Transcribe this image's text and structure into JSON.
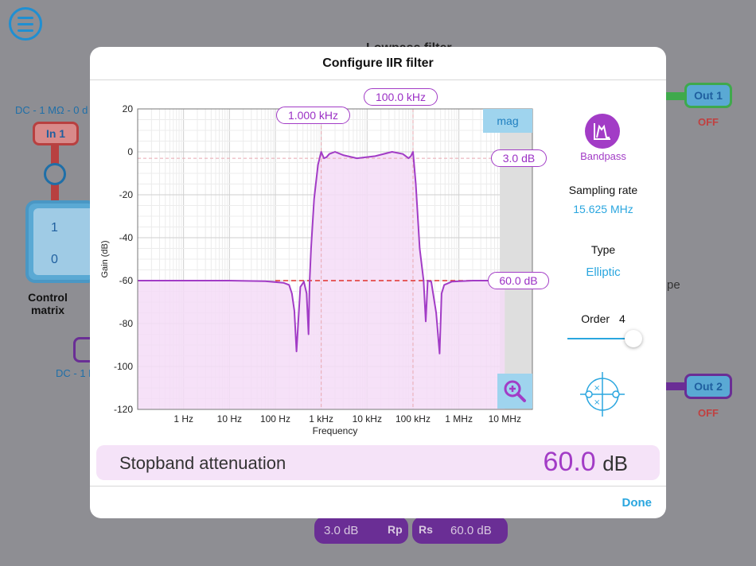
{
  "background": {
    "title_partial": "Lowpass filter",
    "in1_label": "In 1",
    "in1_caption": "DC - 1 MΩ - 0 d",
    "in2_caption": "DC - 1 M",
    "matrix_cells": [
      "1",
      "0"
    ],
    "control_matrix_label": "Control\nmatrix",
    "out1_label": "Out 1",
    "out1_status": "OFF",
    "out2_label": "Out 2",
    "out2_status": "OFF",
    "partial_text": "pe",
    "rp_chip_value": "3.0 dB",
    "rp_chip_symbol": "Rp",
    "rs_chip_symbol": "Rs",
    "rs_chip_value": "60.0 dB"
  },
  "modal": {
    "title": "Configure IIR filter",
    "done_label": "Done"
  },
  "plot": {
    "mag_label": "mag",
    "markers": {
      "low_cutoff": "1.000 kHz",
      "high_cutoff": "100.0 kHz",
      "passband_ripple": "3.0 dB",
      "stopband_atten": "60.0 dB"
    }
  },
  "chart_data": {
    "type": "line",
    "xlabel": "Frequency",
    "ylabel": "Gain (dB)",
    "x_scale": "log",
    "xlim": [
      0.1,
      40000000
    ],
    "ylim": [
      -120,
      20
    ],
    "xticks": [
      {
        "value": 1,
        "label": "1 Hz"
      },
      {
        "value": 10,
        "label": "10 Hz"
      },
      {
        "value": 100,
        "label": "100 Hz"
      },
      {
        "value": 1000,
        "label": "1 kHz"
      },
      {
        "value": 10000,
        "label": "10 kHz"
      },
      {
        "value": 100000,
        "label": "100 kHz"
      },
      {
        "value": 1000000,
        "label": "1 MHz"
      },
      {
        "value": 10000000,
        "label": "10 MHz"
      }
    ],
    "yticks": [
      20,
      0,
      -20,
      -40,
      -60,
      -80,
      -100,
      -120
    ],
    "grid": true,
    "nyquist_shade_from": 7800000,
    "passband_edges": [
      1000,
      100000
    ],
    "passband_ripple_db": -3,
    "stopband_level_db": -60,
    "series": [
      {
        "x": [
          0.1,
          1,
          10,
          60,
          150,
          200,
          230,
          260,
          290,
          350,
          420,
          480,
          530,
          560,
          600,
          700,
          850,
          1000,
          1150,
          1300,
          1500,
          2000,
          3000,
          6000,
          15000,
          35000,
          60000,
          80000,
          90000,
          100000,
          115000,
          140000,
          170000,
          190000,
          210000,
          250000,
          320000,
          380000,
          420000,
          480000,
          700000,
          2000000,
          10000000
        ],
        "y": [
          -60,
          -60,
          -60,
          -60.3,
          -61,
          -62,
          -66,
          -74,
          -93,
          -63,
          -60.5,
          -66,
          -85,
          -60,
          -45,
          -22,
          -6,
          0,
          -3,
          -2.5,
          -1,
          0,
          -1.5,
          -3,
          -2,
          0,
          -1,
          -3,
          -2,
          0,
          -15,
          -45,
          -60,
          -79,
          -60,
          -60.5,
          -75,
          -94,
          -66,
          -62,
          -60.5,
          -60,
          -60
        ]
      }
    ]
  },
  "side_panel": {
    "filter_shape": "Bandpass",
    "sampling_rate_label": "Sampling rate",
    "sampling_rate_value": "15.625 MHz",
    "type_label": "Type",
    "type_value": "Elliptic",
    "order_label": "Order",
    "order_value": "4",
    "order_slider_fraction": 1.0
  },
  "attenuation": {
    "label": "Stopband attenuation",
    "value": "60.0",
    "unit": "dB"
  },
  "icons": [
    "menu-icon",
    "bandpass-icon",
    "zoom-in-icon",
    "pole-zero-icon"
  ],
  "colors": {
    "accent_purple": "#a23cc6",
    "accent_blue": "#2aa6df",
    "stopband_line": "#e0302a",
    "fill_pink": "#f4dcf7"
  }
}
